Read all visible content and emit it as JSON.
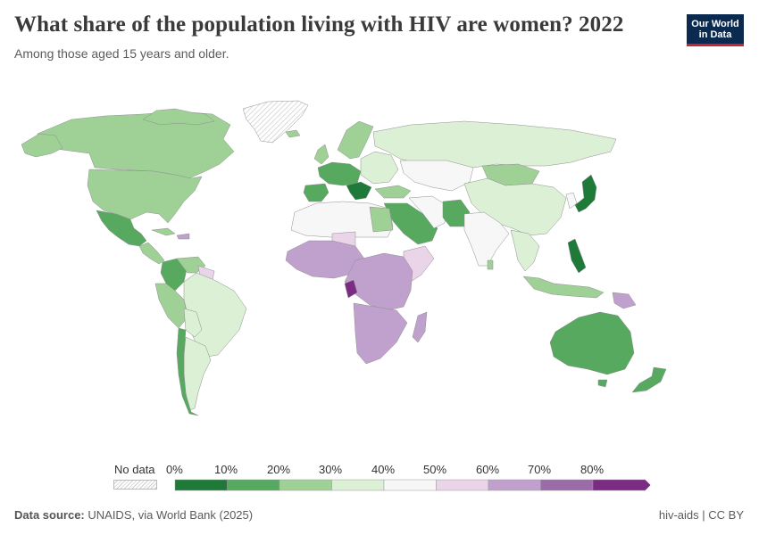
{
  "header": {
    "title": "What share of the population living with HIV are women? 2022",
    "subtitle": "Among those aged 15 years and older."
  },
  "logo": {
    "line1": "Our World",
    "line2": "in Data"
  },
  "legend": {
    "no_data_label": "No data",
    "ticks": [
      "0%",
      "10%",
      "20%",
      "30%",
      "40%",
      "50%",
      "60%",
      "70%",
      "80%"
    ],
    "colors": [
      "#1f7a3a",
      "#56a95f",
      "#9fd197",
      "#dbf0d4",
      "#f7f7f7",
      "#ead5e8",
      "#c0a1cd",
      "#9b6ba8",
      "#7b2b83"
    ]
  },
  "map_colors": {
    "no_data": "#e4e4e4",
    "ocean": "#ffffff",
    "border": "#9a9a9a"
  },
  "footer": {
    "source_label": "Data source:",
    "source_text": "UNAIDS, via World Bank (2025)",
    "slug": "hiv-aids | CC BY"
  }
}
